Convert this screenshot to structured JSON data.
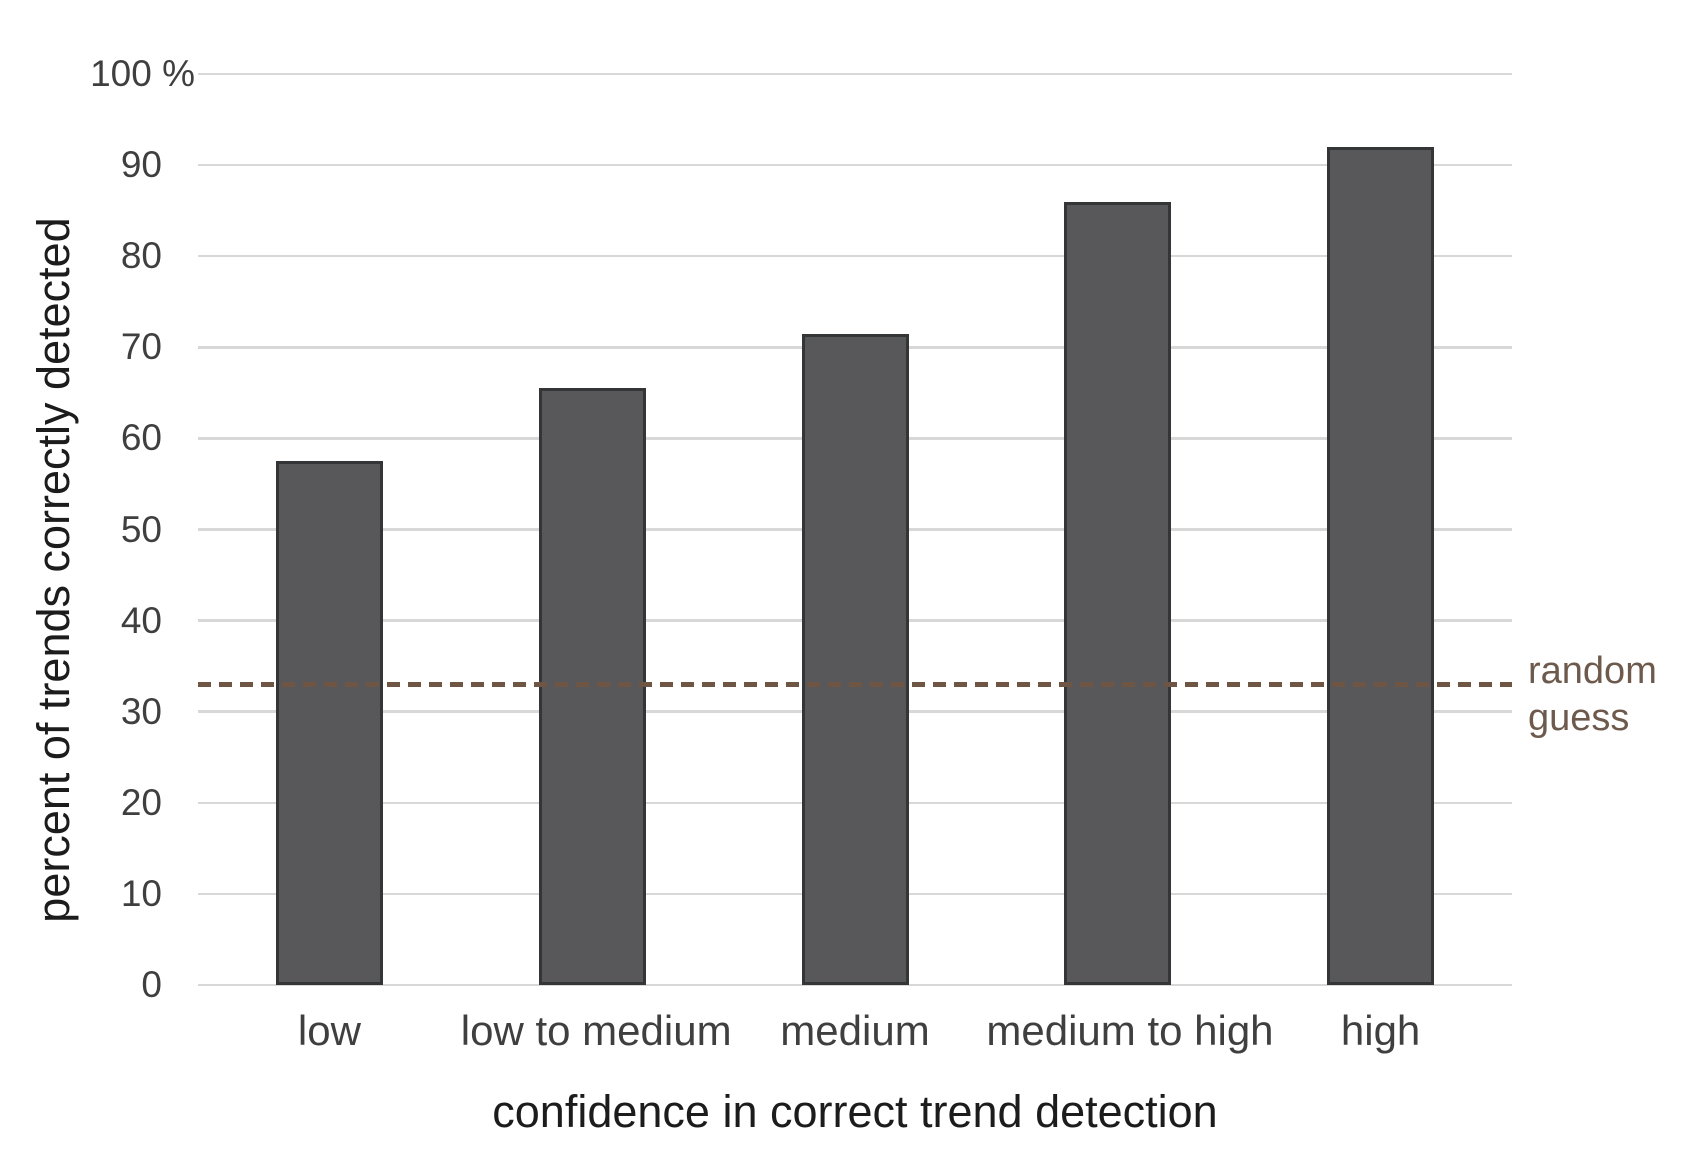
{
  "chart_data": {
    "type": "bar",
    "title": "",
    "categories": [
      "low",
      "low to medium",
      "medium",
      "medium to high",
      "high"
    ],
    "values": [
      57.5,
      65.5,
      71.5,
      86,
      92
    ],
    "xlabel": "confidence in correct trend detection",
    "ylabel": "percent of trends correctly detected",
    "ylim": [
      0,
      100
    ],
    "yticks": [
      {
        "value": 0,
        "label": "0"
      },
      {
        "value": 10,
        "label": "10"
      },
      {
        "value": 20,
        "label": "20"
      },
      {
        "value": 30,
        "label": "30"
      },
      {
        "value": 40,
        "label": "40"
      },
      {
        "value": 50,
        "label": "50"
      },
      {
        "value": 60,
        "label": "60"
      },
      {
        "value": 70,
        "label": "70"
      },
      {
        "value": 80,
        "label": "80"
      },
      {
        "value": 90,
        "label": "90"
      },
      {
        "value": 100,
        "label": "100 %"
      }
    ],
    "grid": "horizontal",
    "legend": "none",
    "colors": {
      "bar_fill": "#58585a",
      "bar_border": "#333536",
      "gridline": "#d8d8d8",
      "tick_text": "#3f3f3f",
      "axis_title_text": "#1c1c1c"
    },
    "reference_line": {
      "value": 33,
      "style": "dashed",
      "color": "#6f5544",
      "label_line1": "random",
      "label_line2": "guess",
      "label_color": "#6d5a4d",
      "label_position": "right-of-plot"
    }
  }
}
